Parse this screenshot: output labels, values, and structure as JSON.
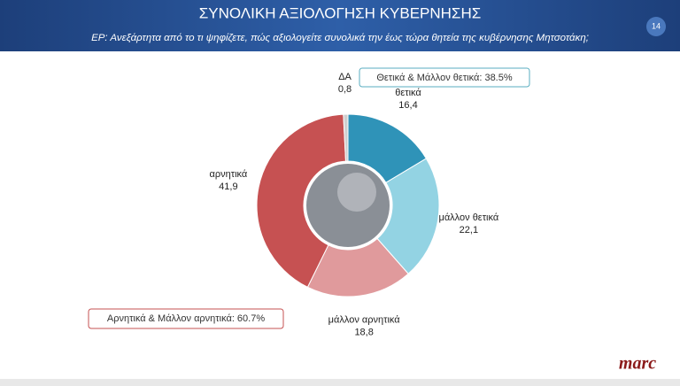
{
  "chart_data": {
    "type": "donut",
    "title": "ΣΥΝΟΛΙΚΗ ΑΞΙΟΛΟΓΗΣΗ ΚΥΒΕΡΝΗΣΗΣ",
    "subtitle": "ΕΡ: Ανεξάρτητα από το τι ψηφίζετε, πώς αξιολογείτε συνολικά την έως τώρα θητεία της κυβέρνησης Μητσοτάκη;",
    "page_number": "14",
    "categories": [
      "θετικά",
      "μάλλον θετικά",
      "μάλλον αρνητικά",
      "αρνητικά",
      "ΔΑ"
    ],
    "values": [
      16.4,
      22.1,
      18.8,
      41.9,
      0.8
    ],
    "value_labels": [
      "16,4",
      "22,1",
      "18,8",
      "41,9",
      "0,8"
    ],
    "colors": [
      "#2f93b8",
      "#93d3e3",
      "#e09a9c",
      "#c65152",
      "#cfcfcf"
    ],
    "annotations": [
      "Θετικά & Μάλλον θετικά: 38.5%",
      "Αρνητικά & Μάλλον αρνητικά: 60.7%"
    ],
    "logo": "marc"
  }
}
